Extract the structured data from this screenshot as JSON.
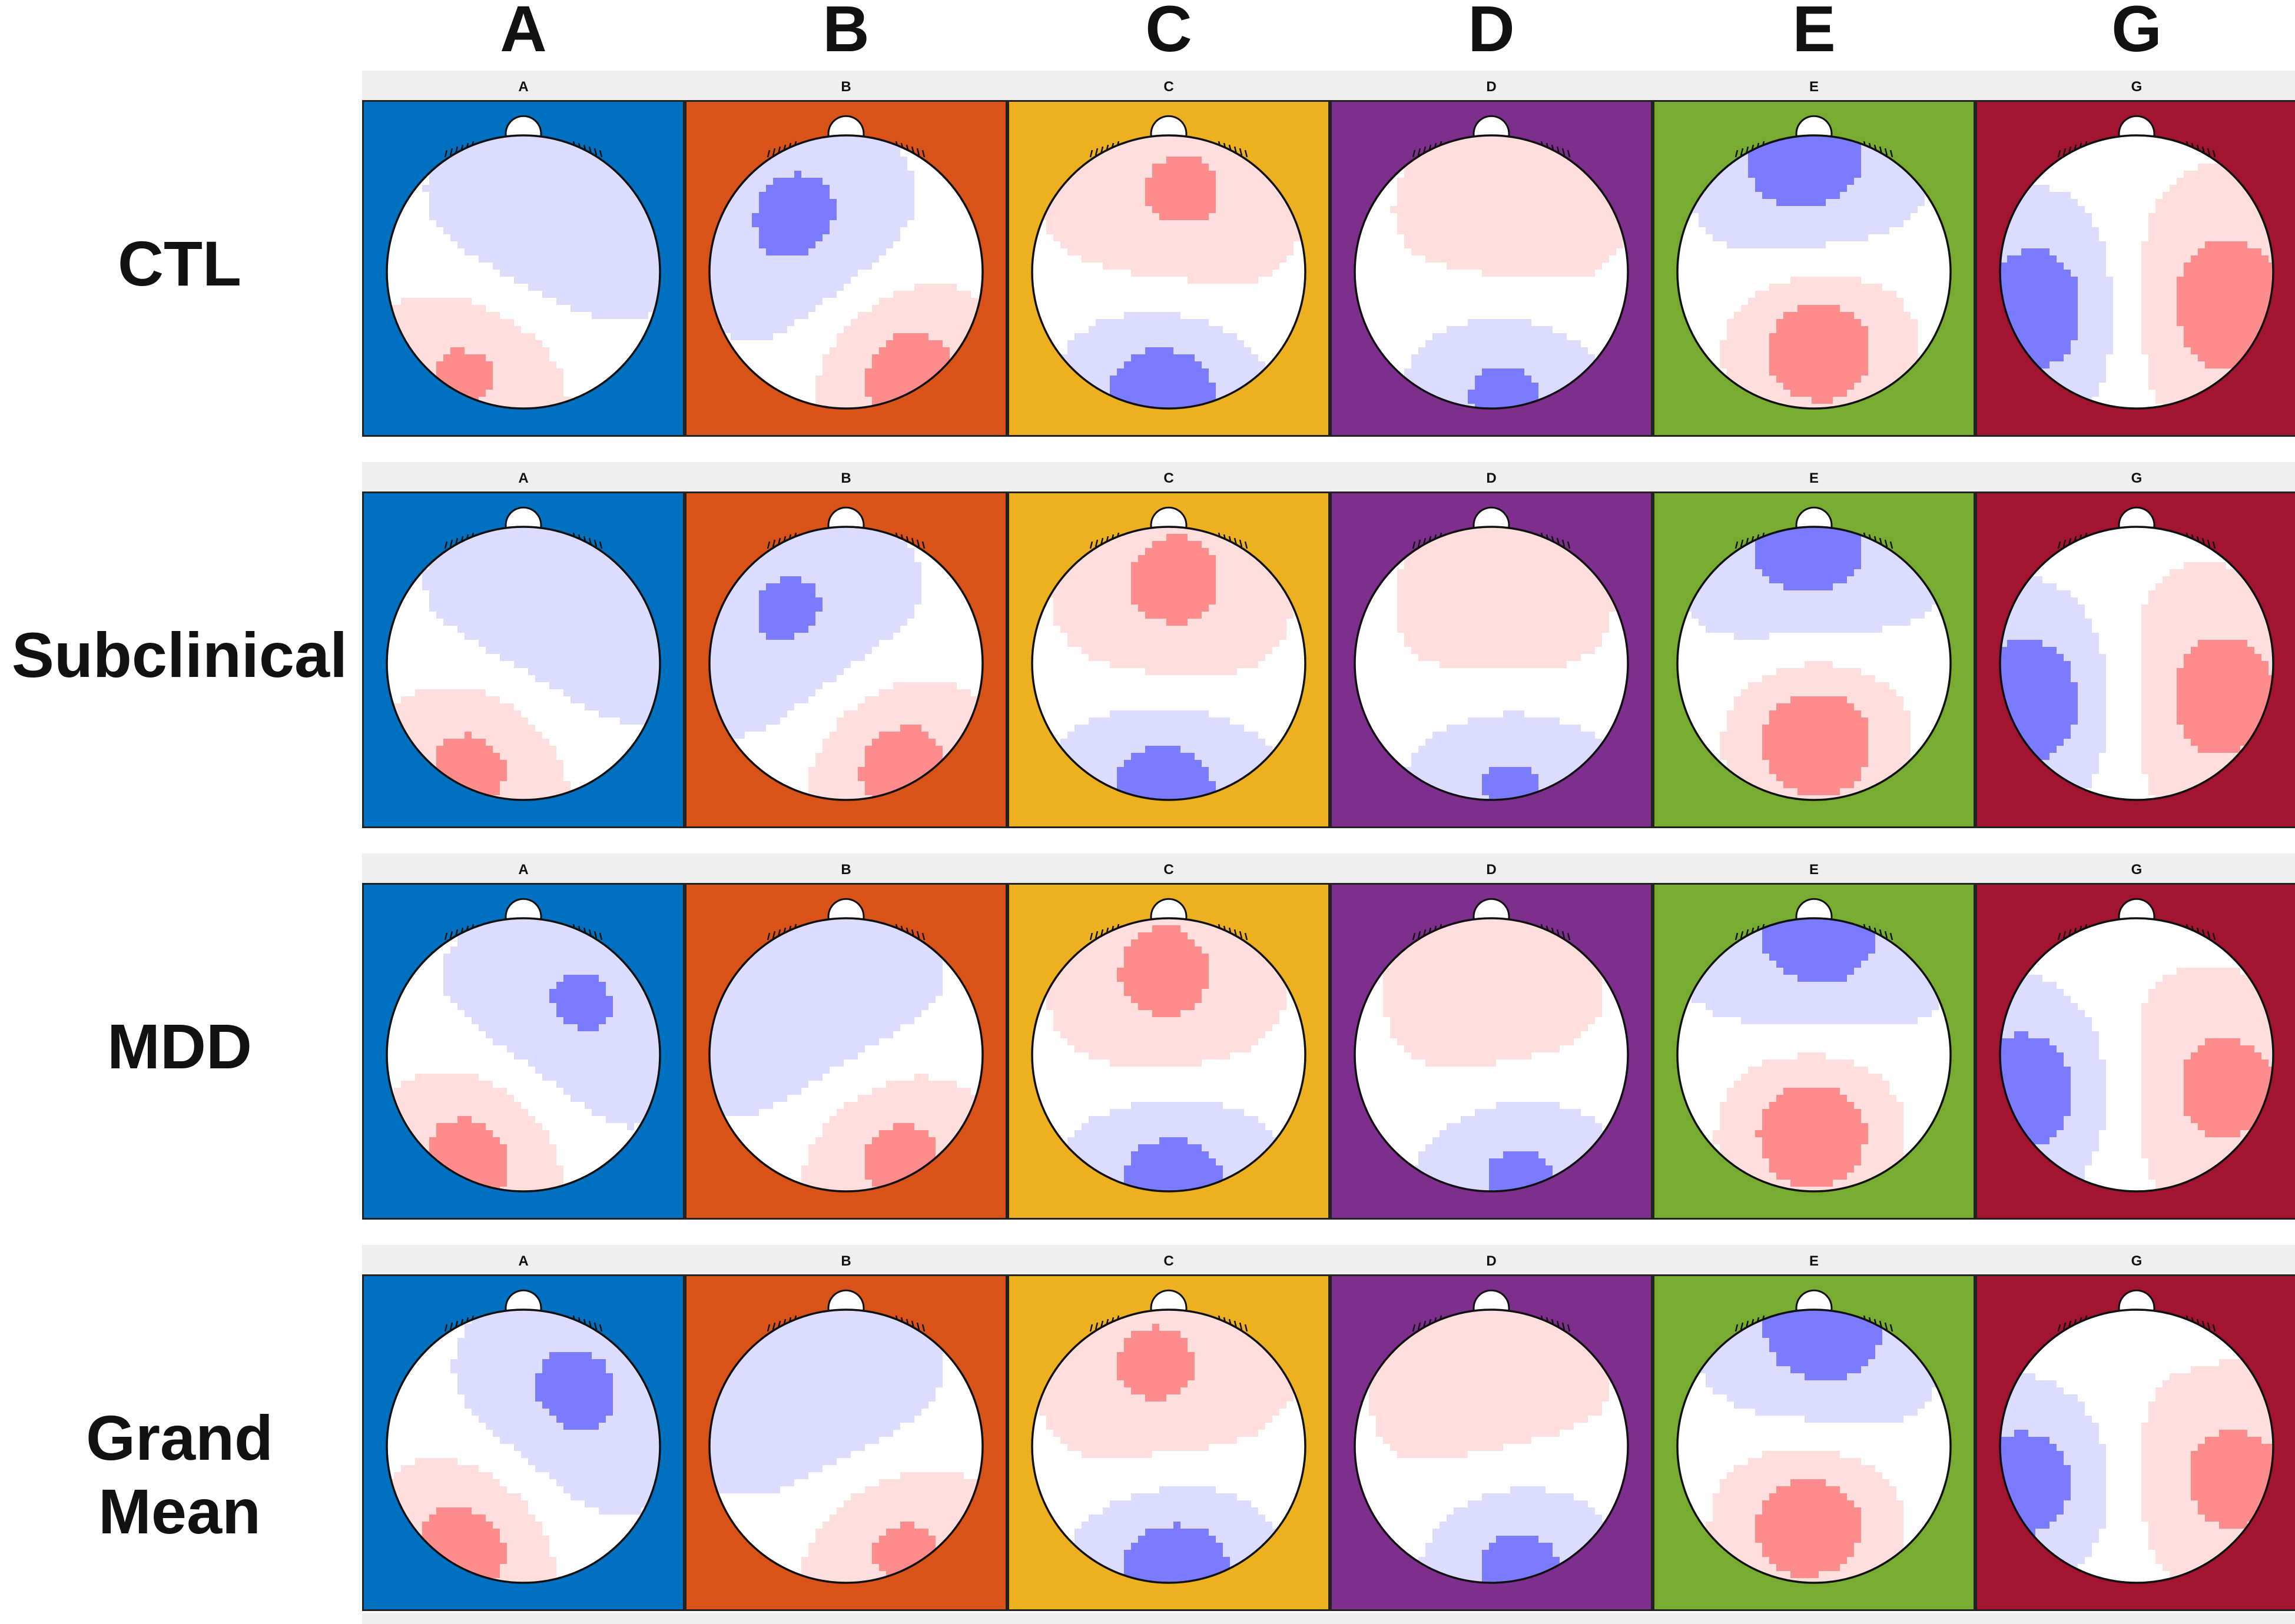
{
  "column_headers": [
    "A",
    "B",
    "C",
    "D",
    "E",
    "G"
  ],
  "rows": [
    {
      "label": "CTL"
    },
    {
      "label": "Subclinical"
    },
    {
      "label": "MDD"
    },
    {
      "label": "Grand Mean"
    }
  ],
  "panel_labels": [
    "A",
    "B",
    "C",
    "D",
    "E",
    "G"
  ],
  "panel_colors": [
    "#0070c0",
    "#d95319",
    "#edb120",
    "#7e2f8e",
    "#77ac30",
    "#a2142f"
  ],
  "colors": {
    "map_negative_strong": "#7b7bff",
    "map_negative_light": "#dcdcff",
    "map_neutral": "#ffffff",
    "map_positive_light": "#ffdede",
    "map_positive_strong": "#ff8c8c",
    "outline": "#111111",
    "strip": "#efefef"
  }
}
